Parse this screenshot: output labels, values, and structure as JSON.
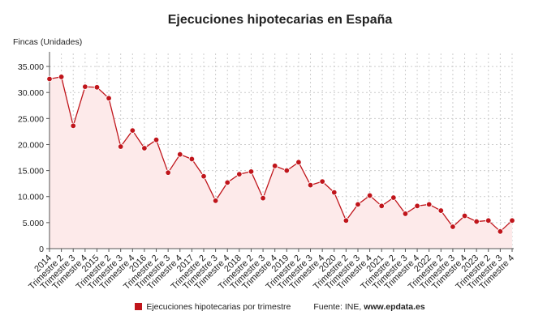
{
  "chart_data": {
    "type": "area",
    "title": "Ejecuciones hipotecarias en España",
    "ylabel": "Fincas (Unidades)",
    "xlabel": "",
    "ylim": [
      0,
      37500
    ],
    "y_ticks": [
      0,
      5000,
      10000,
      15000,
      20000,
      25000,
      30000,
      35000
    ],
    "y_tick_labels": [
      "0",
      "5.000",
      "10.000",
      "15.000",
      "20.000",
      "25.000",
      "30.000",
      "35.000"
    ],
    "grid": true,
    "legend_position": "bottom",
    "colors": {
      "series": "#c0151b",
      "fill": "#fdeaea",
      "grid": "#cccccc"
    },
    "categories": [
      "2014",
      "Trimestre 2",
      "Trimestre 3",
      "Trimestre 4",
      "2015",
      "Trimestre 2",
      "Trimestre 3",
      "Trimestre 4",
      "2016",
      "Trimestre 2",
      "Trimestre 3",
      "Trimestre 4",
      "2017",
      "Trimestre 2",
      "Trimestre 3",
      "Trimestre 4",
      "2018",
      "Trimestre 2",
      "Trimestre 3",
      "Trimestre 4",
      "2019",
      "Trimestre 2",
      "Trimestre 3",
      "Trimestre 4",
      "2020",
      "Trimestre 2",
      "Trimestre 3",
      "Trimestre 4",
      "2021",
      "Trimestre 2",
      "Trimestre 3",
      "Trimestre 4",
      "2022",
      "Trimestre 2",
      "Trimestre 3",
      "Trimestre 4",
      "2023",
      "Trimestre 2",
      "Trimestre 3",
      "Trimestre 4"
    ],
    "series": [
      {
        "name": "Ejecuciones hipotecarias por trimestre",
        "values": [
          32600,
          33000,
          23600,
          31100,
          31000,
          28900,
          19600,
          22700,
          19300,
          20900,
          14600,
          18100,
          17200,
          13900,
          9200,
          12700,
          14300,
          14800,
          9700,
          15900,
          15000,
          16600,
          12200,
          12900,
          10800,
          5400,
          8500,
          10200,
          8200,
          9800,
          6700,
          8200,
          8500,
          7300,
          4200,
          6300,
          5200,
          5400,
          3300,
          5400
        ]
      }
    ],
    "source_prefix": "Fuente: INE, ",
    "source_site": "www.epdata.es"
  }
}
